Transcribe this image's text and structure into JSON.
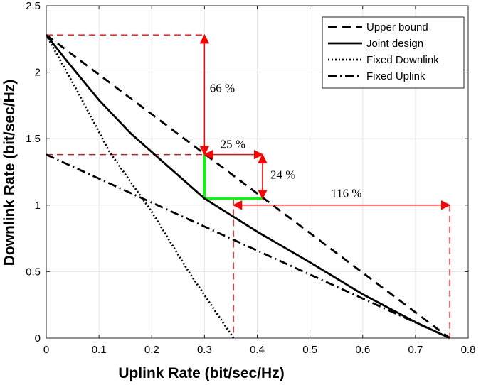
{
  "chart_data": {
    "type": "line",
    "xlabel": "Uplink Rate (bit/sec/Hz)",
    "ylabel": "Downlink Rate (bit/sec/Hz)",
    "xlim": [
      0,
      0.8
    ],
    "ylim": [
      0,
      2.5
    ],
    "xticks": [
      "0",
      "0.1",
      "0.2",
      "0.3",
      "0.4",
      "0.5",
      "0.6",
      "0.7",
      "0.8"
    ],
    "yticks": [
      "0",
      "0.5",
      "1",
      "1.5",
      "2",
      "2.5"
    ],
    "grid": true,
    "legend_position": "top-right",
    "series": [
      {
        "name": "Upper bound",
        "style": "dashed",
        "color": "#000000",
        "x": [
          0,
          0.765
        ],
        "y": [
          2.28,
          0
        ]
      },
      {
        "name": "Joint design",
        "style": "solid",
        "color": "#000000",
        "x": [
          0,
          0.04,
          0.1,
          0.16,
          0.22,
          0.3,
          0.4,
          0.5,
          0.6,
          0.7,
          0.765
        ],
        "y": [
          2.28,
          2.08,
          1.79,
          1.54,
          1.33,
          1.05,
          0.8,
          0.57,
          0.33,
          0.12,
          0
        ]
      },
      {
        "name": "Fixed Downlink",
        "style": "dotted",
        "color": "#000000",
        "x": [
          0,
          0.06,
          0.12,
          0.2,
          0.27,
          0.355
        ],
        "y": [
          2.28,
          1.85,
          1.4,
          0.95,
          0.5,
          0
        ]
      },
      {
        "name": "Fixed Uplink",
        "style": "dashdot",
        "color": "#000000",
        "x": [
          0,
          0.765
        ],
        "y": [
          1.38,
          0
        ]
      }
    ],
    "annotations": [
      {
        "text": "66 %",
        "x": 0.31,
        "y": 1.85
      },
      {
        "text": "25 %",
        "x": 0.33,
        "y": 1.43
      },
      {
        "text": "24 %",
        "x": 0.425,
        "y": 1.2
      },
      {
        "text": "116 %",
        "x": 0.54,
        "y": 1.06
      }
    ],
    "reference_lines": [
      {
        "x": [
          0,
          0.3
        ],
        "y": [
          2.28,
          2.28
        ]
      },
      {
        "x": [
          0,
          0.3
        ],
        "y": [
          1.38,
          1.38
        ]
      },
      {
        "x": [
          0.355,
          0.355
        ],
        "y": [
          1.05,
          0
        ]
      },
      {
        "x": [
          0.765,
          0.765
        ],
        "y": [
          1.0,
          0
        ]
      }
    ],
    "arrows": [
      {
        "x": [
          0.3,
          0.3
        ],
        "y": [
          2.28,
          1.38
        ],
        "both": true
      },
      {
        "x": [
          0.3,
          0.41
        ],
        "y": [
          1.38,
          1.38
        ],
        "both": true
      },
      {
        "x": [
          0.41,
          0.41
        ],
        "y": [
          1.38,
          1.05
        ],
        "both": true
      },
      {
        "x": [
          0.355,
          0.765
        ],
        "y": [
          1.0,
          1.0
        ],
        "both": true
      }
    ],
    "highlight_path": {
      "x": [
        0.3,
        0.3,
        0.41
      ],
      "y": [
        1.38,
        1.05,
        1.05
      ],
      "color": "#00ff00"
    },
    "colors": {
      "annotation": "#ff0000",
      "highlight": "#00ff00",
      "grid": "#e6e6e6",
      "axis": "#262626"
    }
  }
}
